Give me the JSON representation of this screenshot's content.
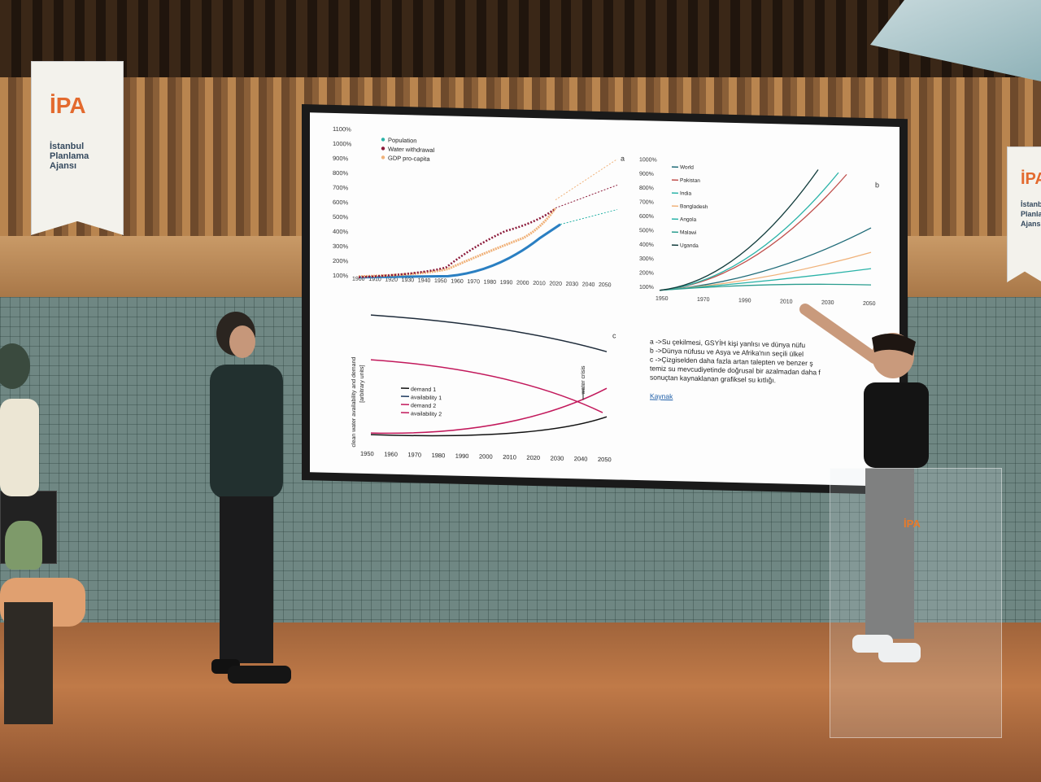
{
  "banners": {
    "left": {
      "logo": "İPA",
      "name": "İstanbul\nPlanlama\nAjansı"
    },
    "right": {
      "logo": "İPA",
      "name": "İstanbul\nPlanlama\nAjansı"
    }
  },
  "podium": {
    "logo": "İPA"
  },
  "slide": {
    "panel_a": {
      "label": "a",
      "yticks": [
        "1100%",
        "1000%",
        "900%",
        "800%",
        "700%",
        "600%",
        "500%",
        "400%",
        "300%",
        "200%",
        "100%"
      ],
      "xticks": [
        "1900",
        "1910",
        "1920",
        "1930",
        "1940",
        "1950",
        "1960",
        "1970",
        "1980",
        "1990",
        "2000",
        "2010",
        "2020",
        "2030",
        "2040",
        "2050"
      ],
      "legend": [
        "Population",
        "Water withdrawal",
        "GDP pro-capita"
      ]
    },
    "panel_b": {
      "label": "b",
      "yticks": [
        "1000%",
        "900%",
        "800%",
        "700%",
        "600%",
        "500%",
        "400%",
        "300%",
        "200%",
        "100%"
      ],
      "xticks": [
        "1950",
        "1970",
        "1990",
        "2010",
        "2030",
        "2050"
      ],
      "legend": [
        "World",
        "Pakistan",
        "India",
        "Bangladesh",
        "Angola",
        "Malawi",
        "Uganda"
      ]
    },
    "panel_c": {
      "label": "c",
      "ylabel": "clean water availability and demand",
      "yunits": "[arbitrary units]",
      "xticks": [
        "1950",
        "1960",
        "1970",
        "1980",
        "1990",
        "2000",
        "2010",
        "2020",
        "2030",
        "2040",
        "2050"
      ],
      "legend": [
        "demand 1",
        "availability 1",
        "demand 2",
        "availability 2"
      ],
      "annotation": "water crisis"
    },
    "notes": [
      "a ->Su çekilmesi, GSYİH kişi yanlısı ve dünya nüfu",
      "b ->Dünya nüfusu ve Asya ve Afrika'nın seçili ülkel",
      "c ->Çizgiselden daha fazla artan talepten ve benzer ş",
      "temiz su mevcudiyetinde doğrusal bir azalmadan daha f",
      "sonuçtan kaynaklanan grafiksel su kıtlığı."
    ],
    "link": "Kaynak"
  },
  "colors": {
    "population": "#2a7fc2",
    "water": "#8b1a3a",
    "gdp": "#f0b27a",
    "teal": "#2bb3a8",
    "screen_bg": "#fdfdfd"
  }
}
